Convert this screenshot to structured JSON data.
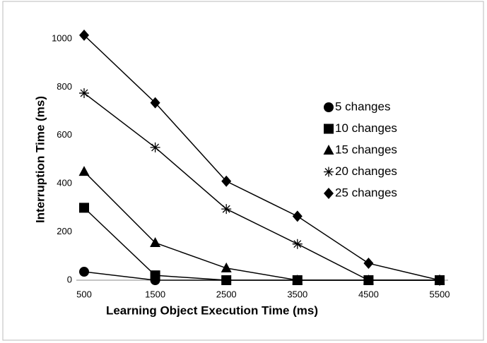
{
  "chart_data": {
    "type": "line",
    "xlabel": "Learning Object Execution Time (ms)",
    "ylabel": "Interruption Time (ms)",
    "x": [
      500,
      1500,
      2500,
      3500,
      4500,
      5500
    ],
    "xlim": [
      500,
      5500
    ],
    "xticks": [
      500,
      1500,
      2500,
      3500,
      4500,
      5500
    ],
    "ylim": [
      0,
      1000
    ],
    "yticks": [
      0,
      200,
      400,
      600,
      800,
      1000
    ],
    "grid": false,
    "legend": "right",
    "series": [
      {
        "name": "5 changes",
        "color": "#000000",
        "marker": "circle",
        "values": [
          35,
          0,
          0,
          0,
          0,
          0
        ]
      },
      {
        "name": "10 changes",
        "color": "#000000",
        "marker": "square",
        "values": [
          300,
          20,
          0,
          0,
          0,
          0
        ]
      },
      {
        "name": "15 changes",
        "color": "#000000",
        "marker": "triangle",
        "values": [
          450,
          155,
          50,
          0,
          0,
          0
        ]
      },
      {
        "name": "20 changes",
        "color": "#000000",
        "marker": "asterisk",
        "values": [
          775,
          550,
          295,
          150,
          0,
          0
        ]
      },
      {
        "name": "25 changes",
        "color": "#000000",
        "marker": "diamond",
        "values": [
          1015,
          735,
          410,
          265,
          70,
          0
        ]
      }
    ]
  }
}
